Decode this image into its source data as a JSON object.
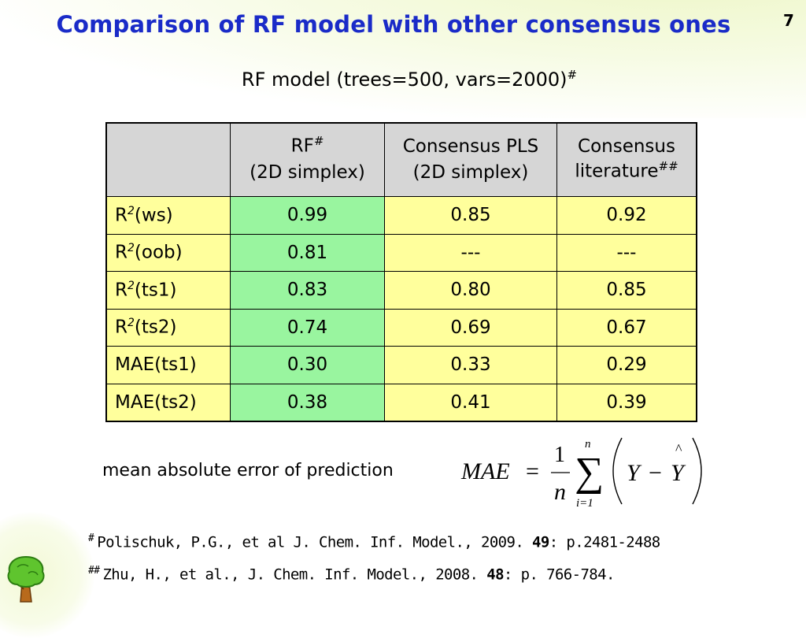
{
  "slide": {
    "title": "Comparison of RF model with other consensus ones",
    "number": "7",
    "subtitle": "RF model (trees=500, vars=2000)",
    "subtitle_mark": "#"
  },
  "table": {
    "headers": [
      {
        "line1": "",
        "line2": "",
        "mark": ""
      },
      {
        "line1": "RF",
        "mark": "#",
        "line2": "(2D simplex)"
      },
      {
        "line1": "Consensus PLS",
        "mark": "",
        "line2": "(2D simplex)"
      },
      {
        "line1": "Consensus",
        "mark": "##",
        "line2": "literature"
      }
    ],
    "rows": [
      {
        "label": "R",
        "sup": "2",
        "suffix": "(ws)",
        "rf": "0.99",
        "pls": "0.85",
        "lit": "0.92"
      },
      {
        "label": "R",
        "sup": "2",
        "suffix": "(oob)",
        "rf": "0.81",
        "pls": "---",
        "lit": "---"
      },
      {
        "label": "R",
        "sup": "2",
        "suffix": "(ts1)",
        "rf": "0.83",
        "pls": "0.80",
        "lit": "0.85"
      },
      {
        "label": "R",
        "sup": "2",
        "suffix": "(ts2)",
        "rf": "0.74",
        "pls": "0.69",
        "lit": "0.67"
      },
      {
        "label": "MAE(ts1)",
        "sup": "",
        "suffix": "",
        "rf": "0.30",
        "pls": "0.33",
        "lit": "0.29"
      },
      {
        "label": "MAE(ts2)",
        "sup": "",
        "suffix": "",
        "rf": "0.38",
        "pls": "0.41",
        "lit": "0.39"
      }
    ],
    "colors": {
      "header": "#d6d6d6",
      "rf_column": "#99f59f",
      "other_columns": "#ffff9c"
    }
  },
  "mae": {
    "label": "mean absolute error of prediction",
    "formula": {
      "lhs": "MAE",
      "eq": "=",
      "numerator": "1",
      "denominator": "n",
      "sum_upper": "n",
      "sum_lower": "i=1",
      "y": "Y",
      "minus": "−",
      "yhat": "Y",
      "hat": "^"
    }
  },
  "references": [
    {
      "mark": "#",
      "text_before": "Polischuk, P.G., et al J. Chem. Inf. Model., 2009. ",
      "bold": "49",
      "text_after": ": p.2481-2488"
    },
    {
      "mark": "##",
      "text_before": "Zhu, H., et al., J. Chem. Inf. Model., 2008. ",
      "bold": "48",
      "text_after": ": p. 766-784."
    }
  ],
  "logo": {
    "icon": "tree-icon"
  }
}
